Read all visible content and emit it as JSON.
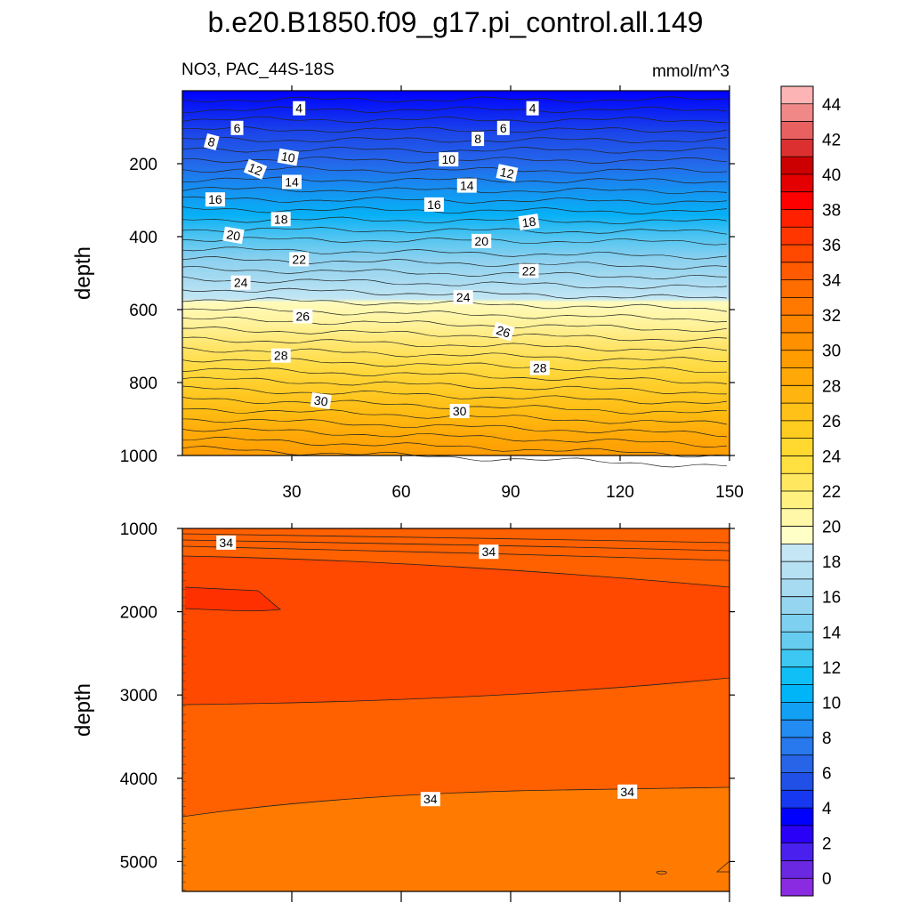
{
  "chart_data": {
    "type": "contour",
    "title": "b.e20.B1850.f09_g17.pi_control.all.149",
    "subtitle_left": "NO3, PAC_44S-18S",
    "units": "mmol/m^3",
    "colorbar": {
      "levels": [
        0,
        2,
        4,
        6,
        8,
        10,
        12,
        14,
        16,
        18,
        20,
        22,
        24,
        26,
        28,
        30,
        32,
        34,
        36,
        38,
        40,
        42,
        44
      ],
      "tick_labels": [
        "0",
        "2",
        "4",
        "6",
        "8",
        "10",
        "12",
        "14",
        "16",
        "18",
        "20",
        "22",
        "24",
        "26",
        "28",
        "30",
        "32",
        "34",
        "36",
        "38",
        "40",
        "42",
        "44"
      ],
      "colors": [
        "#8a2be2",
        "#6a28e0",
        "#4a20ee",
        "#2a00f6",
        "#0000ff",
        "#1538f0",
        "#2050e6",
        "#2864e8",
        "#2878ee",
        "#228cf2",
        "#12a0f4",
        "#00b4f8",
        "#10bff6",
        "#3cc8f2",
        "#66ccf0",
        "#7ed0f0",
        "#96d5ef",
        "#a6dbf1",
        "#b6e1f3",
        "#c4e6f5",
        "#ffffc8",
        "#fff8a8",
        "#fff080",
        "#ffe860",
        "#ffe040",
        "#ffd830",
        "#ffcc20",
        "#ffc018",
        "#ffb410",
        "#ffa808",
        "#ff9c00",
        "#ff9000",
        "#ff8400",
        "#ff7800",
        "#ff6c00",
        "#ff5a00",
        "#ff4800",
        "#ff3600",
        "#ff2000",
        "#ff0000",
        "#e40000",
        "#cc0000",
        "#dc3030",
        "#e86060",
        "#f08888",
        "#fcb4b4"
      ]
    },
    "upper_panel": {
      "ylabel": "depth",
      "ylim": [
        0,
        1000
      ],
      "yticks": [
        "200",
        "400",
        "600",
        "800",
        "1000"
      ],
      "xlim": [
        0,
        150
      ],
      "xticks": [
        "30",
        "60",
        "90",
        "120",
        "150"
      ],
      "contour_labels": [
        {
          "text": "4",
          "x": 32,
          "y": 48,
          "rot": 0
        },
        {
          "text": "4",
          "x": 96,
          "y": 48,
          "rot": 0
        },
        {
          "text": "6",
          "x": 15,
          "y": 102,
          "rot": 0
        },
        {
          "text": "6",
          "x": 88,
          "y": 102,
          "rot": 0
        },
        {
          "text": "8",
          "x": 8,
          "y": 140,
          "rot": 15
        },
        {
          "text": "8",
          "x": 81,
          "y": 132,
          "rot": 0
        },
        {
          "text": "10",
          "x": 29,
          "y": 182,
          "rot": 10
        },
        {
          "text": "10",
          "x": 73,
          "y": 188,
          "rot": 0
        },
        {
          "text": "12",
          "x": 20,
          "y": 215,
          "rot": 22
        },
        {
          "text": "12",
          "x": 89,
          "y": 225,
          "rot": 12
        },
        {
          "text": "14",
          "x": 30,
          "y": 250,
          "rot": 0
        },
        {
          "text": "14",
          "x": 78,
          "y": 260,
          "rot": 0
        },
        {
          "text": "16",
          "x": 9,
          "y": 298,
          "rot": 0
        },
        {
          "text": "16",
          "x": 69,
          "y": 312,
          "rot": 0
        },
        {
          "text": "18",
          "x": 27,
          "y": 352,
          "rot": 0
        },
        {
          "text": "18",
          "x": 95,
          "y": 360,
          "rot": -8
        },
        {
          "text": "20",
          "x": 14,
          "y": 396,
          "rot": 10
        },
        {
          "text": "20",
          "x": 82,
          "y": 412,
          "rot": 0
        },
        {
          "text": "22",
          "x": 32,
          "y": 462,
          "rot": 0
        },
        {
          "text": "22",
          "x": 95,
          "y": 494,
          "rot": 0
        },
        {
          "text": "24",
          "x": 16,
          "y": 526,
          "rot": 0
        },
        {
          "text": "24",
          "x": 77,
          "y": 566,
          "rot": 0
        },
        {
          "text": "26",
          "x": 33,
          "y": 618,
          "rot": 0
        },
        {
          "text": "26",
          "x": 88,
          "y": 660,
          "rot": 18
        },
        {
          "text": "28",
          "x": 27,
          "y": 726,
          "rot": 0
        },
        {
          "text": "28",
          "x": 98,
          "y": 760,
          "rot": 0
        },
        {
          "text": "30",
          "x": 38,
          "y": 850,
          "rot": 8
        },
        {
          "text": "30",
          "x": 76,
          "y": 878,
          "rot": 0
        }
      ]
    },
    "lower_panel": {
      "ylabel": "depth",
      "ylim": [
        1000,
        5400
      ],
      "yticks": [
        "1000",
        "2000",
        "3000",
        "4000",
        "5000"
      ],
      "xlim": [
        0,
        150
      ],
      "contour_labels": [
        {
          "text": "34",
          "x": 12,
          "y": 1170,
          "rot": 0
        },
        {
          "text": "34",
          "x": 84,
          "y": 1280,
          "rot": 0
        },
        {
          "text": "34",
          "x": 68,
          "y": 4250,
          "rot": 0
        },
        {
          "text": "34",
          "x": 122,
          "y": 4160,
          "rot": 0
        }
      ]
    }
  }
}
